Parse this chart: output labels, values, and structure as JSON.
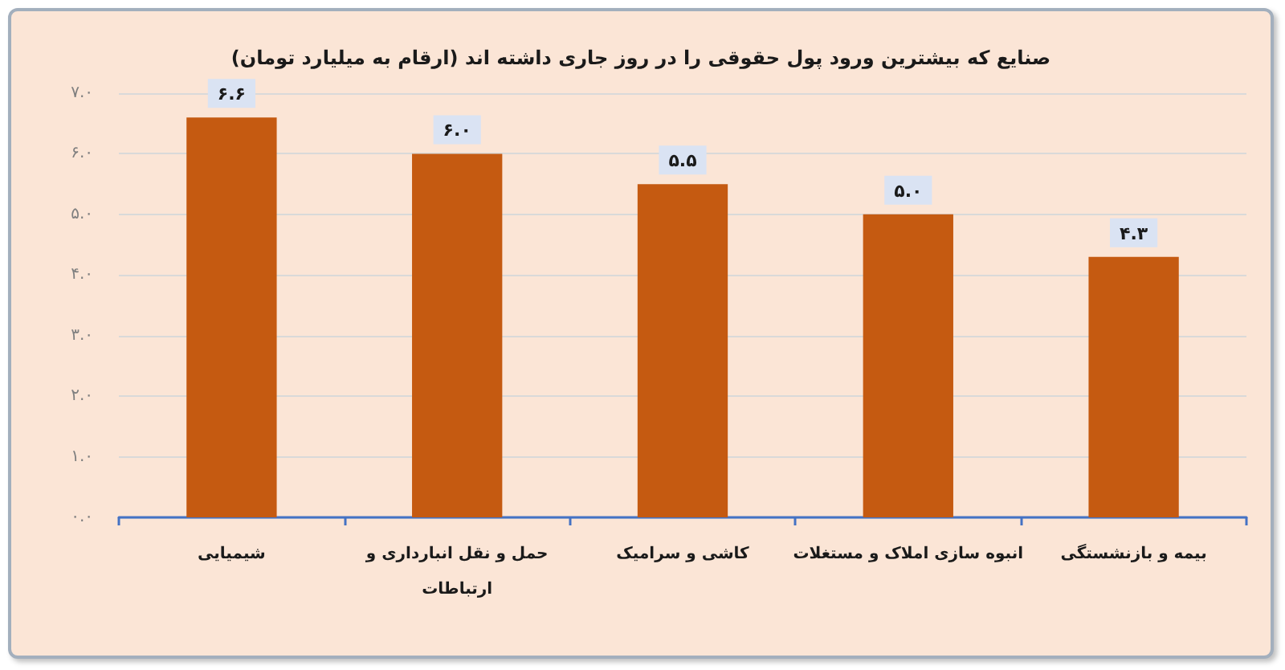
{
  "chart_data": {
    "type": "bar",
    "title": "صنایع که بیشترین ورود پول حقوقی را در روز جاری داشته اند (ارقام به میلیارد تومان)",
    "categories": [
      "شیمیایی",
      "حمل و نقل انبارداری و ارتباطات",
      "کاشی و سرامیک",
      "انبوه سازی املاک و مستغلات",
      "بیمه و بازنشستگی"
    ],
    "values": [
      6.6,
      6.0,
      5.5,
      5.0,
      4.3
    ],
    "value_labels": [
      "۶.۶",
      "۶.۰",
      "۵.۵",
      "۵.۰",
      "۴.۳"
    ],
    "color": "#c55a11",
    "ylim": [
      0,
      7
    ],
    "yticks": [
      {
        "value": 0,
        "label": "۰.۰"
      },
      {
        "value": 1,
        "label": "۱.۰"
      },
      {
        "value": 2,
        "label": "۲.۰"
      },
      {
        "value": 3,
        "label": "۳.۰"
      },
      {
        "value": 4,
        "label": "۴.۰"
      },
      {
        "value": 5,
        "label": "۵.۰"
      },
      {
        "value": 6,
        "label": "۶.۰"
      },
      {
        "value": 7,
        "label": "۷.۰"
      }
    ],
    "grid": "y"
  }
}
